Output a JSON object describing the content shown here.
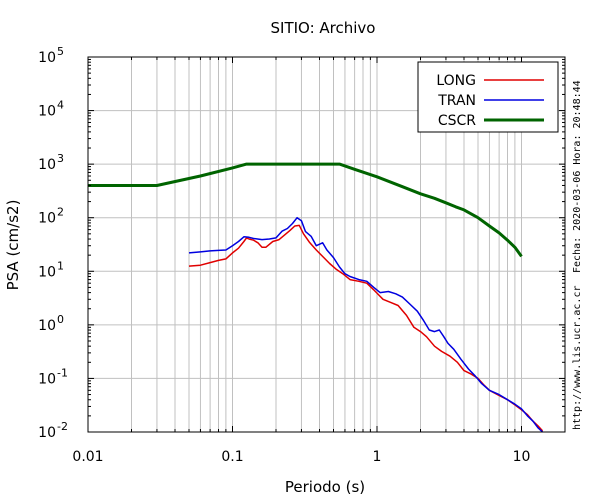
{
  "chart_data": {
    "type": "line",
    "title": "SITIO: Archivo",
    "xlabel": "Periodo (s)",
    "ylabel": "PSA (cm/s2)",
    "x_scale": "log",
    "y_scale": "log",
    "xlim": [
      0.01,
      20
    ],
    "ylim": [
      0.01,
      100000
    ],
    "grid": true,
    "legend_position": "top-right",
    "x_ticks": [
      {
        "value": 0.01,
        "label": "0.01"
      },
      {
        "value": 0.1,
        "label": "0.1"
      },
      {
        "value": 1,
        "label": "1"
      },
      {
        "value": 10,
        "label": "10"
      }
    ],
    "y_ticks": [
      {
        "value": 0.01,
        "base": "10",
        "exp": "-2"
      },
      {
        "value": 0.1,
        "base": "10",
        "exp": "-1"
      },
      {
        "value": 1,
        "base": "10",
        "exp": "0"
      },
      {
        "value": 10,
        "base": "10",
        "exp": "1"
      },
      {
        "value": 100,
        "base": "10",
        "exp": "2"
      },
      {
        "value": 1000,
        "base": "10",
        "exp": "3"
      },
      {
        "value": 10000,
        "base": "10",
        "exp": "4"
      },
      {
        "value": 100000,
        "base": "10",
        "exp": "5"
      }
    ],
    "series": [
      {
        "name": "LONG",
        "color": "#e00000",
        "points": [
          [
            0.05,
            12.5
          ],
          [
            0.06,
            13
          ],
          [
            0.07,
            14.5
          ],
          [
            0.08,
            16
          ],
          [
            0.09,
            17
          ],
          [
            0.1,
            22
          ],
          [
            0.11,
            27
          ],
          [
            0.12,
            36
          ],
          [
            0.125,
            42
          ],
          [
            0.13,
            40
          ],
          [
            0.14,
            38
          ],
          [
            0.15,
            34
          ],
          [
            0.16,
            28
          ],
          [
            0.17,
            28
          ],
          [
            0.19,
            36
          ],
          [
            0.21,
            39
          ],
          [
            0.23,
            48
          ],
          [
            0.25,
            58
          ],
          [
            0.27,
            70
          ],
          [
            0.29,
            72
          ],
          [
            0.31,
            50
          ],
          [
            0.34,
            35
          ],
          [
            0.38,
            25
          ],
          [
            0.42,
            19
          ],
          [
            0.47,
            14
          ],
          [
            0.52,
            11
          ],
          [
            0.58,
            9
          ],
          [
            0.65,
            7
          ],
          [
            0.75,
            6.5
          ],
          [
            0.85,
            6
          ],
          [
            0.95,
            4.5
          ],
          [
            1.1,
            3
          ],
          [
            1.25,
            2.6
          ],
          [
            1.4,
            2.3
          ],
          [
            1.6,
            1.5
          ],
          [
            1.8,
            0.9
          ],
          [
            2.0,
            0.75
          ],
          [
            2.2,
            0.6
          ],
          [
            2.5,
            0.4
          ],
          [
            2.8,
            0.32
          ],
          [
            3.2,
            0.26
          ],
          [
            3.6,
            0.2
          ],
          [
            4.0,
            0.14
          ],
          [
            4.5,
            0.12
          ],
          [
            5.0,
            0.1
          ],
          [
            5.5,
            0.075
          ],
          [
            6.0,
            0.06
          ],
          [
            7.0,
            0.048
          ],
          [
            8.0,
            0.04
          ],
          [
            9.0,
            0.032
          ],
          [
            10.0,
            0.026
          ],
          [
            11.0,
            0.021
          ],
          [
            12.0,
            0.016
          ],
          [
            13.0,
            0.013
          ],
          [
            14.0,
            0.0105
          ]
        ]
      },
      {
        "name": "TRAN",
        "color": "#0000e0",
        "points": [
          [
            0.05,
            22
          ],
          [
            0.06,
            23
          ],
          [
            0.07,
            24
          ],
          [
            0.08,
            24.5
          ],
          [
            0.09,
            25
          ],
          [
            0.1,
            30
          ],
          [
            0.11,
            36
          ],
          [
            0.12,
            44
          ],
          [
            0.13,
            43
          ],
          [
            0.14,
            41
          ],
          [
            0.16,
            39
          ],
          [
            0.18,
            40
          ],
          [
            0.2,
            42
          ],
          [
            0.22,
            56
          ],
          [
            0.24,
            63
          ],
          [
            0.26,
            78
          ],
          [
            0.28,
            100
          ],
          [
            0.3,
            88
          ],
          [
            0.32,
            55
          ],
          [
            0.35,
            45
          ],
          [
            0.38,
            30
          ],
          [
            0.42,
            34
          ],
          [
            0.45,
            25
          ],
          [
            0.5,
            18
          ],
          [
            0.55,
            12
          ],
          [
            0.6,
            9
          ],
          [
            0.65,
            8
          ],
          [
            0.75,
            7
          ],
          [
            0.85,
            6.5
          ],
          [
            0.95,
            5
          ],
          [
            1.05,
            4
          ],
          [
            1.2,
            4.2
          ],
          [
            1.35,
            3.8
          ],
          [
            1.5,
            3.3
          ],
          [
            1.7,
            2.4
          ],
          [
            1.9,
            1.8
          ],
          [
            2.1,
            1.2
          ],
          [
            2.3,
            0.8
          ],
          [
            2.5,
            0.75
          ],
          [
            2.7,
            0.8
          ],
          [
            2.9,
            0.6
          ],
          [
            3.1,
            0.45
          ],
          [
            3.4,
            0.35
          ],
          [
            3.8,
            0.23
          ],
          [
            4.3,
            0.15
          ],
          [
            4.8,
            0.11
          ],
          [
            5.3,
            0.08
          ],
          [
            6.0,
            0.06
          ],
          [
            7.0,
            0.05
          ],
          [
            8.0,
            0.04
          ],
          [
            9.0,
            0.033
          ],
          [
            10.0,
            0.027
          ],
          [
            11.0,
            0.02
          ],
          [
            12.0,
            0.016
          ],
          [
            13.0,
            0.012
          ],
          [
            14.0,
            0.01
          ]
        ]
      },
      {
        "name": "CSCR",
        "color": "#006400",
        "points": [
          [
            0.01,
            400
          ],
          [
            0.03,
            400
          ],
          [
            0.06,
            600
          ],
          [
            0.1,
            850
          ],
          [
            0.125,
            1000
          ],
          [
            0.55,
            1000
          ],
          [
            0.7,
            800
          ],
          [
            1.0,
            580
          ],
          [
            1.5,
            380
          ],
          [
            2.0,
            280
          ],
          [
            2.5,
            230
          ],
          [
            3.0,
            190
          ],
          [
            3.5,
            160
          ],
          [
            4.0,
            140
          ],
          [
            5.0,
            100
          ],
          [
            6.0,
            70
          ],
          [
            7.0,
            52
          ],
          [
            8.0,
            38
          ],
          [
            9.0,
            28
          ],
          [
            10.0,
            19
          ]
        ]
      }
    ],
    "side_labels": {
      "date": "Fecha: 2020-03-06 Hora: 20:48:44",
      "url": "http://www.lis.ucr.ac.cr"
    }
  }
}
